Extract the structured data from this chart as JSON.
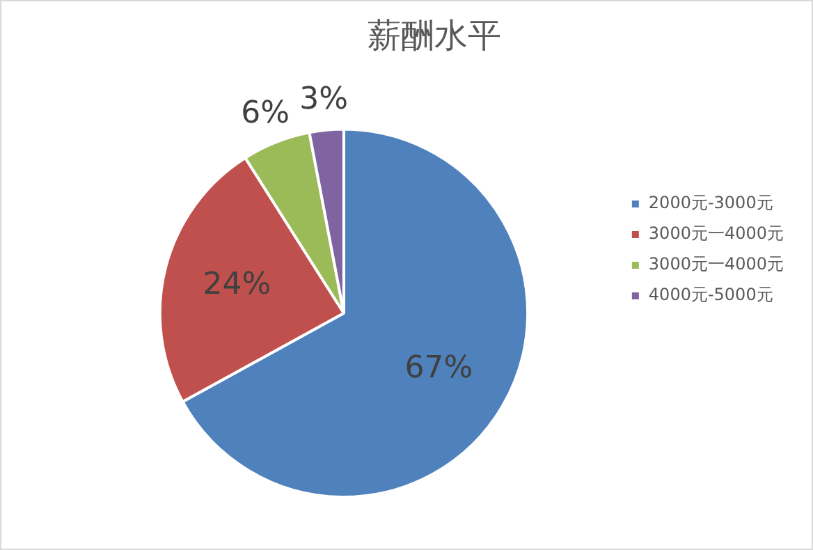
{
  "chart_data": {
    "type": "pie",
    "title": "薪酬水平",
    "categories": [
      "2000元-3000元",
      "3000元一4000元",
      "3000元一4000元",
      "4000元-5000元"
    ],
    "values": [
      67,
      24,
      6,
      3
    ],
    "colors": [
      "#4f81bd",
      "#c0504d",
      "#9bbb59",
      "#8064a2"
    ],
    "value_labels": [
      "67%",
      "24%",
      "6%",
      "3%"
    ],
    "legend": "right"
  }
}
